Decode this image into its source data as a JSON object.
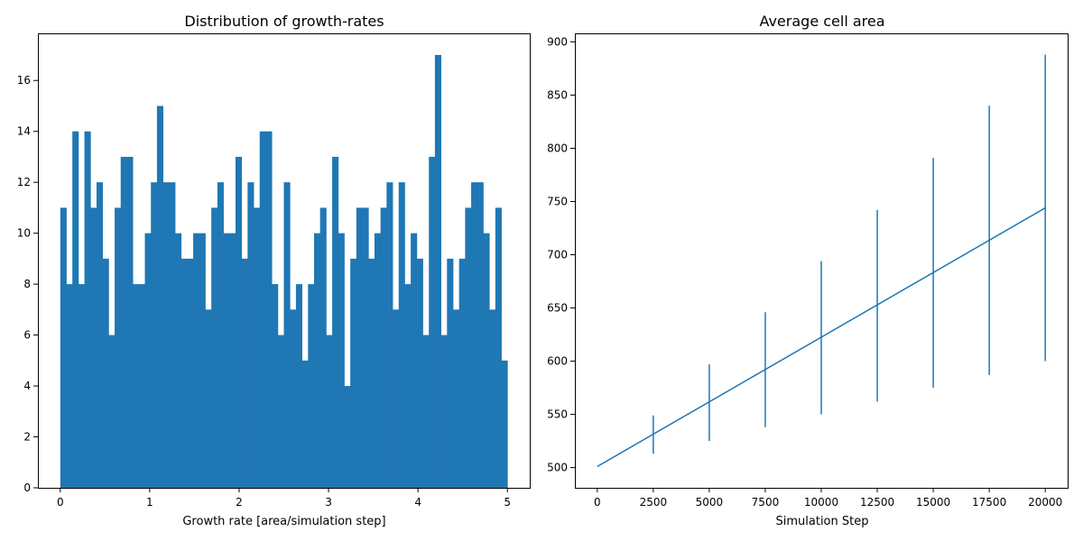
{
  "colors": {
    "series": "#1f77b4",
    "axis": "#000000",
    "background": "#ffffff"
  },
  "chart_data": [
    {
      "type": "bar",
      "title": "Distribution of growth-rates",
      "xlabel": "Growth rate [area/simulation step]",
      "ylabel": "",
      "xlim": [
        -0.25,
        5.25
      ],
      "ylim": [
        0,
        17.85
      ],
      "xticks": [
        0,
        1,
        2,
        3,
        4,
        5
      ],
      "yticks": [
        0,
        2,
        4,
        6,
        8,
        10,
        12,
        14,
        16
      ],
      "bin_range": [
        0,
        5
      ],
      "values": [
        11,
        8,
        14,
        8,
        14,
        11,
        12,
        9,
        6,
        11,
        13,
        13,
        8,
        8,
        10,
        12,
        15,
        12,
        12,
        10,
        9,
        9,
        10,
        10,
        7,
        11,
        12,
        10,
        10,
        13,
        9,
        12,
        11,
        14,
        14,
        8,
        6,
        12,
        7,
        8,
        5,
        8,
        10,
        11,
        6,
        13,
        10,
        4,
        9,
        11,
        11,
        9,
        10,
        11,
        12,
        7,
        12,
        8,
        10,
        9,
        6,
        13,
        17,
        6,
        9,
        7,
        9,
        11,
        12,
        12,
        10,
        7,
        11,
        5
      ],
      "grid": false
    },
    {
      "type": "line",
      "title": "Average cell area",
      "xlabel": "Simulation Step",
      "ylabel": "",
      "xlim": [
        -1000,
        21000
      ],
      "ylim": [
        481,
        908
      ],
      "xticks": [
        0,
        2500,
        5000,
        7500,
        10000,
        12500,
        15000,
        17500,
        20000
      ],
      "yticks": [
        500,
        550,
        600,
        650,
        700,
        750,
        800,
        850,
        900
      ],
      "line": {
        "x": [
          0,
          20000
        ],
        "y": [
          501,
          744
        ]
      },
      "errorbars": [
        {
          "x": 2500,
          "y": 531,
          "low": 513,
          "high": 549
        },
        {
          "x": 5000,
          "y": 562,
          "low": 525,
          "high": 597
        },
        {
          "x": 7500,
          "y": 592,
          "low": 538,
          "high": 646
        },
        {
          "x": 10000,
          "y": 622,
          "low": 550,
          "high": 694
        },
        {
          "x": 12500,
          "y": 653,
          "low": 562,
          "high": 742
        },
        {
          "x": 15000,
          "y": 683,
          "low": 575,
          "high": 791
        },
        {
          "x": 17500,
          "y": 714,
          "low": 587,
          "high": 840
        },
        {
          "x": 20000,
          "y": 744,
          "low": 600,
          "high": 888
        }
      ],
      "grid": false
    }
  ]
}
